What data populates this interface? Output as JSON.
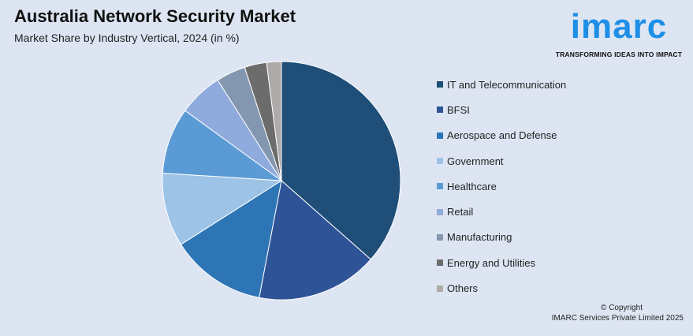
{
  "header": {
    "title": "Australia Network Security Market",
    "subtitle": "Market Share by Industry Vertical, 2024 (in %)"
  },
  "logo": {
    "word": "imarc",
    "tagline": "TRANSFORMING IDEAS INTO IMPACT",
    "color": "#1e8fe6"
  },
  "chart_data": {
    "type": "pie",
    "title": "Australia Network Security Market",
    "subtitle": "Market Share by Industry Vertical, 2024 (in %)",
    "start_angle_deg": 0,
    "direction": "clockwise",
    "legend_position": "right",
    "slices": [
      {
        "label": "IT and Telecommunication",
        "value": 36.5,
        "color": "#1f4e79"
      },
      {
        "label": "BFSI",
        "value": 16.5,
        "color": "#2e5497"
      },
      {
        "label": "Aerospace and Defense",
        "value": 13.0,
        "color": "#2e75b6"
      },
      {
        "label": "Government",
        "value": 10.0,
        "color": "#9dc3e6"
      },
      {
        "label": "Healthcare",
        "value": 9.0,
        "color": "#5b9bd5"
      },
      {
        "label": "Retail",
        "value": 6.0,
        "color": "#8faadc"
      },
      {
        "label": "Manufacturing",
        "value": 4.0,
        "color": "#8497b0"
      },
      {
        "label": "Energy and Utilities",
        "value": 3.0,
        "color": "#6c6c6c"
      },
      {
        "label": "Others",
        "value": 2.0,
        "color": "#aeaaaa"
      }
    ]
  },
  "copyright": {
    "line1": "© Copyright",
    "line2": "IMARC Services Private Limited 2025"
  }
}
